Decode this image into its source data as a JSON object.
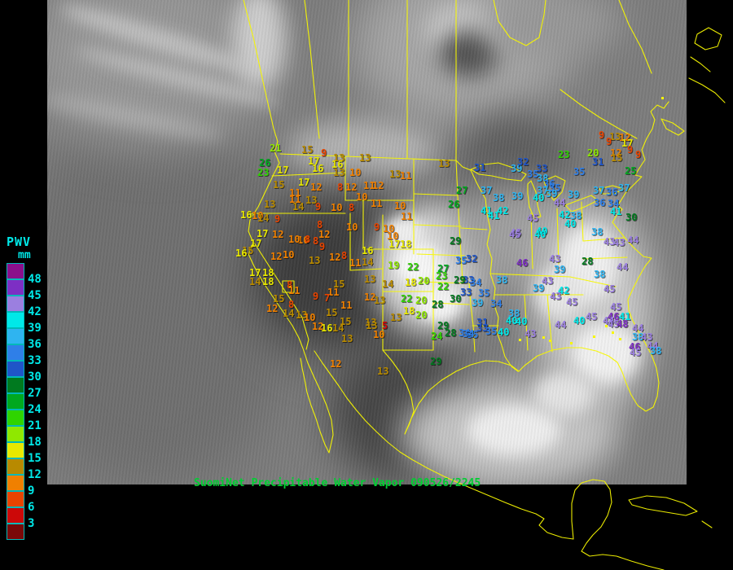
{
  "title": {
    "text": "SuomiNet Precipitable Water Vapor 090526/2245",
    "color": "#00cf32"
  },
  "legend": {
    "title": "PWV",
    "unit": "mm",
    "label_color": "#00e8e8",
    "values": [
      48,
      45,
      42,
      39,
      36,
      33,
      30,
      27,
      24,
      21,
      18,
      15,
      12,
      9,
      6,
      3
    ],
    "colors": [
      "#8b0f8b",
      "#7d2fc4",
      "#9b7fe0",
      "#00e8e8",
      "#2fb4f0",
      "#2f7fe8",
      "#1f55c8",
      "#007a1f",
      "#00a81f",
      "#2fd400",
      "#8fe800",
      "#e8e800",
      "#b88a00",
      "#f08000",
      "#e84400",
      "#cc0808",
      "#7a0808"
    ]
  },
  "map": {
    "outline_color": "#f7f700"
  },
  "stations": [
    [
      21,
      331,
      182
    ],
    [
      15,
      370,
      184
    ],
    [
      9,
      394,
      188
    ],
    [
      26,
      318,
      200
    ],
    [
      23,
      316,
      212
    ],
    [
      17,
      340,
      209
    ],
    [
      17,
      378,
      198
    ],
    [
      16,
      383,
      207
    ],
    [
      13,
      409,
      194
    ],
    [
      13,
      441,
      194
    ],
    [
      16,
      407,
      202
    ],
    [
      13,
      409,
      212
    ],
    [
      10,
      429,
      212
    ],
    [
      15,
      335,
      227
    ],
    [
      17,
      366,
      224
    ],
    [
      12,
      381,
      230
    ],
    [
      8,
      414,
      230
    ],
    [
      12,
      424,
      230
    ],
    [
      11,
      446,
      228
    ],
    [
      12,
      457,
      228
    ],
    [
      11,
      355,
      237
    ],
    [
      11,
      355,
      245
    ],
    [
      13,
      375,
      246
    ],
    [
      10,
      437,
      242
    ],
    [
      14,
      359,
      254
    ],
    [
      9,
      387,
      254
    ],
    [
      10,
      406,
      255
    ],
    [
      8,
      428,
      255
    ],
    [
      11,
      455,
      250
    ],
    [
      13,
      324,
      251
    ],
    [
      16,
      295,
      264
    ],
    [
      10,
      309,
      265
    ],
    [
      14,
      316,
      268
    ],
    [
      9,
      337,
      269
    ],
    [
      17,
      315,
      287
    ],
    [
      12,
      334,
      288
    ],
    [
      8,
      389,
      276
    ],
    [
      12,
      391,
      288
    ],
    [
      10,
      425,
      279
    ],
    [
      9,
      459,
      279
    ],
    [
      10,
      365,
      295
    ],
    [
      8,
      384,
      296
    ],
    [
      17,
      307,
      299
    ],
    [
      15,
      297,
      308
    ],
    [
      16,
      289,
      311
    ],
    [
      12,
      332,
      315
    ],
    [
      10,
      347,
      313
    ],
    [
      10,
      354,
      294
    ],
    [
      8,
      374,
      294
    ],
    [
      9,
      392,
      303
    ],
    [
      13,
      379,
      320
    ],
    [
      12,
      404,
      316
    ],
    [
      8,
      419,
      314
    ],
    [
      16,
      444,
      308
    ],
    [
      11,
      429,
      323
    ],
    [
      14,
      444,
      322
    ],
    [
      17,
      306,
      335
    ],
    [
      18,
      322,
      335
    ],
    [
      14,
      306,
      346
    ],
    [
      18,
      322,
      346
    ],
    [
      8,
      352,
      350
    ],
    [
      11,
      354,
      357
    ],
    [
      15,
      409,
      349
    ],
    [
      13,
      447,
      343
    ],
    [
      11,
      402,
      359
    ],
    [
      9,
      384,
      364
    ],
    [
      7,
      398,
      366
    ],
    [
      12,
      447,
      365
    ],
    [
      15,
      335,
      367
    ],
    [
      8,
      354,
      374
    ],
    [
      12,
      327,
      379
    ],
    [
      15,
      400,
      384
    ],
    [
      11,
      418,
      375
    ],
    [
      14,
      347,
      385
    ],
    [
      13,
      363,
      387
    ],
    [
      10,
      373,
      390
    ],
    [
      15,
      417,
      395
    ],
    [
      13,
      448,
      396
    ],
    [
      13,
      538,
      201
    ],
    [
      13,
      478,
      214
    ],
    [
      11,
      491,
      216
    ],
    [
      31,
      582,
      206
    ],
    [
      39,
      627,
      207
    ],
    [
      27,
      560,
      234
    ],
    [
      37,
      590,
      234
    ],
    [
      26,
      550,
      251
    ],
    [
      38,
      605,
      243
    ],
    [
      39,
      628,
      241
    ],
    [
      10,
      484,
      253
    ],
    [
      11,
      492,
      266
    ],
    [
      41,
      590,
      259
    ],
    [
      41,
      599,
      265
    ],
    [
      42,
      610,
      259
    ],
    [
      45,
      626,
      286
    ],
    [
      10,
      470,
      281
    ],
    [
      10,
      475,
      290
    ],
    [
      29,
      552,
      296
    ],
    [
      17,
      477,
      300
    ],
    [
      18,
      491,
      300
    ],
    [
      9,
      735,
      166
    ],
    [
      13,
      748,
      168
    ],
    [
      12,
      760,
      169
    ],
    [
      17,
      763,
      176
    ],
    [
      9,
      744,
      174
    ],
    [
      12,
      749,
      188
    ],
    [
      9,
      770,
      184
    ],
    [
      15,
      750,
      194
    ],
    [
      9,
      780,
      190
    ],
    [
      23,
      685,
      190
    ],
    [
      20,
      721,
      188
    ],
    [
      31,
      727,
      199
    ],
    [
      32,
      635,
      199
    ],
    [
      33,
      658,
      207
    ],
    [
      25,
      767,
      210
    ],
    [
      35,
      704,
      211
    ],
    [
      35,
      647,
      214
    ],
    [
      38,
      659,
      219
    ],
    [
      36,
      667,
      226
    ],
    [
      35,
      674,
      231
    ],
    [
      37,
      659,
      234
    ],
    [
      39,
      670,
      238
    ],
    [
      40,
      654,
      243
    ],
    [
      39,
      697,
      239
    ],
    [
      37,
      728,
      234
    ],
    [
      37,
      759,
      231
    ],
    [
      36,
      744,
      236
    ],
    [
      44,
      680,
      249
    ],
    [
      36,
      729,
      249
    ],
    [
      34,
      746,
      250
    ],
    [
      41,
      749,
      260
    ],
    [
      30,
      768,
      267
    ],
    [
      45,
      647,
      268
    ],
    [
      42,
      686,
      264
    ],
    [
      38,
      700,
      265
    ],
    [
      40,
      693,
      275
    ],
    [
      40,
      658,
      284
    ],
    [
      38,
      726,
      285
    ],
    [
      45,
      625,
      288
    ],
    [
      40,
      656,
      288
    ],
    [
      32,
      572,
      318
    ],
    [
      35,
      559,
      320
    ],
    [
      46,
      634,
      323
    ],
    [
      43,
      674,
      318
    ],
    [
      39,
      680,
      331
    ],
    [
      28,
      714,
      321
    ],
    [
      38,
      729,
      337
    ],
    [
      33,
      568,
      344
    ],
    [
      34,
      577,
      347
    ],
    [
      38,
      609,
      344
    ],
    [
      43,
      665,
      345
    ],
    [
      39,
      654,
      354
    ],
    [
      42,
      685,
      357
    ],
    [
      43,
      675,
      364
    ],
    [
      45,
      695,
      371
    ],
    [
      35,
      587,
      360
    ],
    [
      39,
      579,
      372
    ],
    [
      34,
      602,
      373
    ],
    [
      38,
      624,
      385
    ],
    [
      40,
      621,
      394
    ],
    [
      40,
      633,
      395
    ],
    [
      31,
      585,
      396
    ],
    [
      33,
      585,
      403
    ],
    [
      35,
      596,
      407
    ],
    [
      34,
      563,
      409
    ],
    [
      35,
      573,
      411
    ],
    [
      40,
      611,
      408
    ],
    [
      43,
      644,
      410
    ],
    [
      40,
      704,
      394
    ],
    [
      44,
      681,
      399
    ],
    [
      45,
      719,
      389
    ],
    [
      19,
      476,
      326
    ],
    [
      22,
      500,
      328
    ],
    [
      27,
      537,
      330
    ],
    [
      23,
      535,
      339
    ],
    [
      29,
      557,
      344
    ],
    [
      14,
      469,
      349
    ],
    [
      18,
      497,
      347
    ],
    [
      20,
      513,
      345
    ],
    [
      22,
      537,
      352
    ],
    [
      13,
      459,
      369
    ],
    [
      22,
      492,
      367
    ],
    [
      20,
      510,
      369
    ],
    [
      28,
      530,
      374
    ],
    [
      33,
      565,
      359
    ],
    [
      30,
      552,
      367
    ],
    [
      18,
      495,
      382
    ],
    [
      13,
      479,
      390
    ],
    [
      20,
      510,
      387
    ],
    [
      5,
      469,
      400
    ],
    [
      29,
      537,
      400
    ],
    [
      28,
      546,
      409
    ],
    [
      24,
      529,
      413
    ],
    [
      34,
      568,
      410
    ],
    [
      12,
      383,
      401
    ],
    [
      16,
      394,
      403
    ],
    [
      14,
      408,
      403
    ],
    [
      13,
      419,
      416
    ],
    [
      13,
      449,
      400
    ],
    [
      10,
      458,
      411
    ],
    [
      12,
      405,
      447
    ],
    [
      13,
      463,
      456
    ],
    [
      29,
      528,
      444
    ],
    [
      43,
      741,
      297
    ],
    [
      43,
      753,
      298
    ],
    [
      44,
      770,
      295
    ],
    [
      44,
      757,
      328
    ],
    [
      45,
      741,
      355
    ],
    [
      45,
      749,
      377
    ],
    [
      46,
      746,
      389
    ],
    [
      41,
      760,
      389
    ],
    [
      44,
      740,
      394
    ],
    [
      45,
      746,
      398
    ],
    [
      48,
      757,
      398
    ],
    [
      44,
      776,
      403
    ],
    [
      38,
      776,
      414
    ],
    [
      43,
      787,
      414
    ],
    [
      46,
      772,
      426
    ],
    [
      44,
      794,
      425
    ],
    [
      45,
      773,
      433
    ],
    [
      38,
      798,
      431
    ]
  ]
}
